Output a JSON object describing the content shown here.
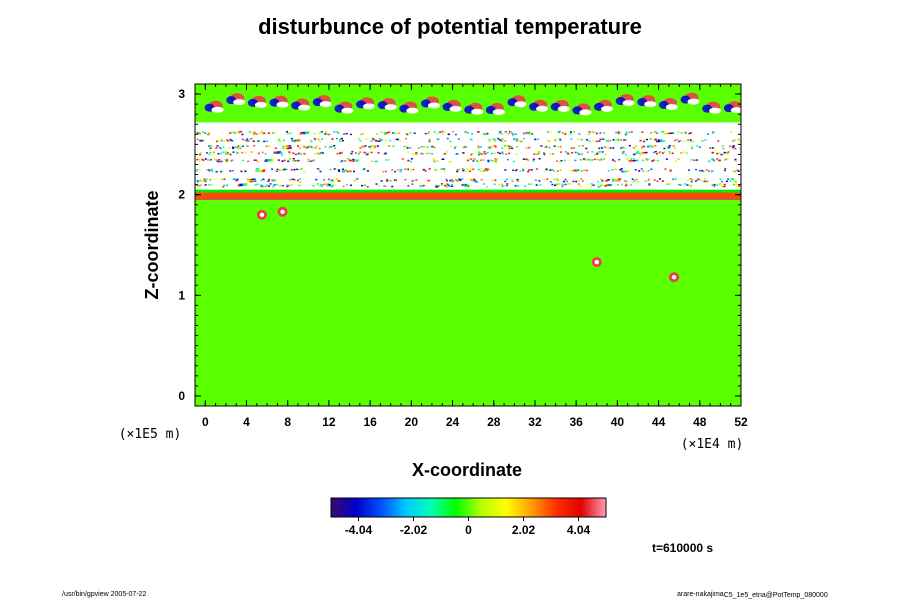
{
  "chart_data": {
    "type": "heatmap",
    "title": "disturbunce of potential temperature",
    "xlabel": "X-coordinate",
    "ylabel": "Z-coordinate",
    "x_ticks": [
      0,
      4,
      8,
      12,
      16,
      20,
      24,
      28,
      32,
      36,
      40,
      44,
      48,
      52
    ],
    "y_ticks": [
      0,
      1,
      2,
      3
    ],
    "xlim": [
      -1,
      52
    ],
    "ylim": [
      -0.1,
      3.1
    ],
    "x_scale_label": "(×1E4 m)",
    "y_scale_label": "(×1E5 m)",
    "colorbar": {
      "range": [
        -5.05,
        5.05
      ],
      "tick_values": [
        -4.04,
        -2.02,
        0,
        2.02,
        4.04
      ],
      "tick_labels": [
        "-4.04",
        "-2.02",
        "0",
        "2.02",
        "4.04"
      ],
      "colors": [
        "#3a0a6e",
        "#0000c8",
        "#0050ff",
        "#00c8ff",
        "#00ffb4",
        "#00ff00",
        "#b4ff00",
        "#ffff00",
        "#ffa000",
        "#ff3000",
        "#e00000",
        "#ff9cb4"
      ]
    },
    "field_description_regions": [
      {
        "zrange": [
          -0.1,
          1.95
        ],
        "value": 0.0
      },
      {
        "zrange": [
          1.95,
          2.02
        ],
        "value": 3.0
      },
      {
        "zrange": [
          2.05,
          2.72
        ],
        "value": null
      },
      {
        "zrange": [
          2.72,
          3.1
        ],
        "value": 0.0
      }
    ]
  },
  "annotations": {
    "time": "t=610000 s",
    "footer_left": "/usr/bin/gpview 2005-07-22",
    "footer_right": "arare-nakajima",
    "footer_right_small": "C5_1e5_etna@PotTemp_080000"
  }
}
